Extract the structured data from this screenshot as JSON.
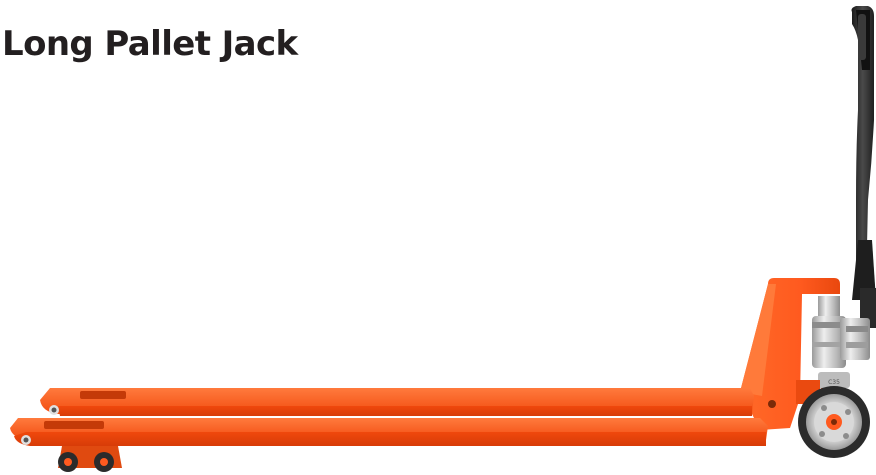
{
  "title": "Long Pallet Jack",
  "colors": {
    "body": "#ff5a1f",
    "handle": "#2a2a2a",
    "chrome": "#c8c8c8",
    "wheel_tire": "#2b2b2b",
    "title_text": "#231f20"
  }
}
